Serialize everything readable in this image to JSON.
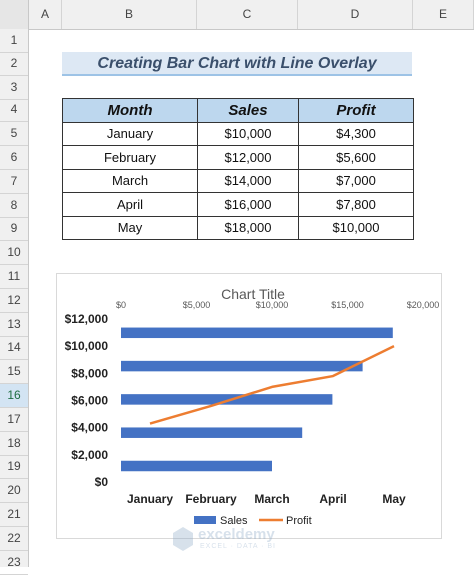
{
  "spreadsheet": {
    "columns": [
      "A",
      "B",
      "C",
      "D",
      "E"
    ],
    "rows": [
      "1",
      "2",
      "3",
      "4",
      "5",
      "6",
      "7",
      "8",
      "9",
      "10",
      "11",
      "12",
      "13",
      "14",
      "15",
      "16",
      "17",
      "18",
      "19",
      "20",
      "21",
      "22",
      "23"
    ],
    "selected_row": "16"
  },
  "heading": "Creating Bar Chart with Line Overlay",
  "table": {
    "headers": [
      "Month",
      "Sales",
      "Profit"
    ],
    "rows": [
      [
        "January",
        "$10,000",
        "$4,300"
      ],
      [
        "February",
        "$12,000",
        "$5,600"
      ],
      [
        "March",
        "$14,000",
        "$7,000"
      ],
      [
        "April",
        "$16,000",
        "$7,800"
      ],
      [
        "May",
        "$18,000",
        "$10,000"
      ]
    ]
  },
  "chart_data": {
    "type": "bar",
    "title": "Chart Title",
    "categories": [
      "January",
      "February",
      "March",
      "April",
      "May"
    ],
    "series": [
      {
        "name": "Sales",
        "type": "bar",
        "orientation": "horizontal",
        "axis": "top",
        "values": [
          10000,
          12000,
          14000,
          16000,
          18000
        ],
        "color": "#4472c4"
      },
      {
        "name": "Profit",
        "type": "line",
        "axis": "left",
        "values": [
          4300,
          5600,
          7000,
          7800,
          10000
        ],
        "color": "#ed7d31"
      }
    ],
    "top_axis": {
      "min": 0,
      "max": 20000,
      "ticks": [
        "$0",
        "$5,000",
        "$10,000",
        "$15,000",
        "$20,000"
      ]
    },
    "left_axis": {
      "min": 0,
      "max": 12000,
      "ticks": [
        "$0",
        "$2,000",
        "$4,000",
        "$6,000",
        "$8,000",
        "$10,000",
        "$12,000"
      ]
    },
    "legend_position": "bottom",
    "grid": false
  },
  "watermark": {
    "brand": "exceldemy",
    "tagline": "EXCEL · DATA · BI"
  }
}
